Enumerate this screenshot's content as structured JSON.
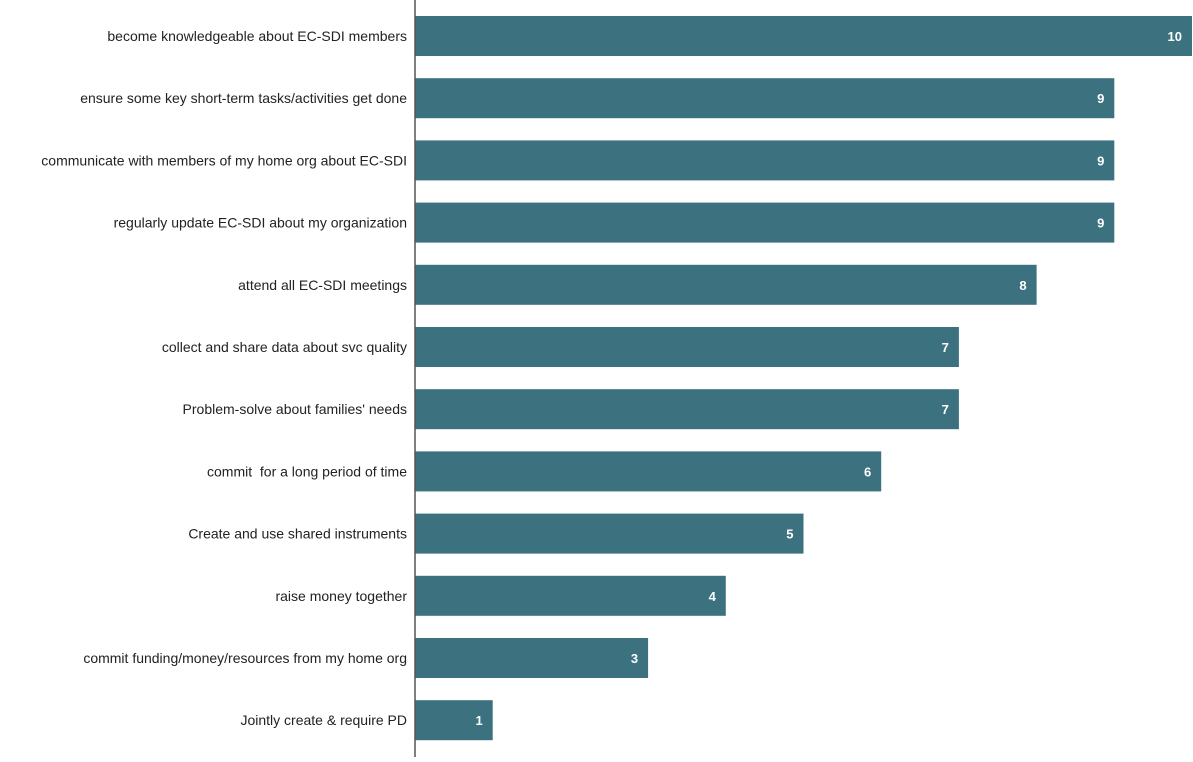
{
  "chart_data": {
    "type": "bar",
    "orientation": "horizontal",
    "categories": [
      "become knowledgeable about EC-SDI members",
      "ensure some key short-term tasks/activities get done",
      "communicate with members of my home org about EC-SDI",
      "regularly update EC-SDI about my organization",
      "attend all EC-SDI meetings",
      "collect and share data about svc quality",
      "Problem-solve about families' needs",
      "commit  for a long period of time",
      "Create and use shared instruments",
      "raise money together",
      "commit funding/money/resources from my home org",
      "Jointly create & require PD"
    ],
    "values": [
      10,
      9,
      9,
      9,
      8,
      7,
      7,
      6,
      5,
      4,
      3,
      1
    ],
    "xlim": [
      0,
      10
    ],
    "grid": false,
    "legend": "none",
    "data_labels": "inside-end",
    "bar_color": "#3c7180",
    "axis_color": "#555555"
  }
}
